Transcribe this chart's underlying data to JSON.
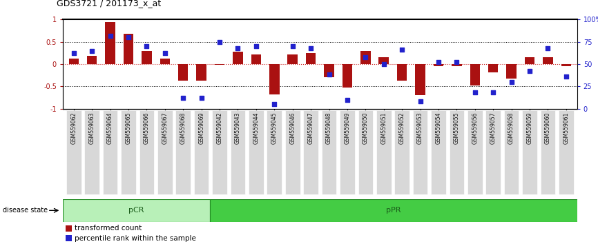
{
  "title": "GDS3721 / 201173_x_at",
  "samples": [
    "GSM559062",
    "GSM559063",
    "GSM559064",
    "GSM559065",
    "GSM559066",
    "GSM559067",
    "GSM559068",
    "GSM559069",
    "GSM559042",
    "GSM559043",
    "GSM559044",
    "GSM559045",
    "GSM559046",
    "GSM559047",
    "GSM559048",
    "GSM559049",
    "GSM559050",
    "GSM559051",
    "GSM559052",
    "GSM559053",
    "GSM559054",
    "GSM559055",
    "GSM559056",
    "GSM559057",
    "GSM559058",
    "GSM559059",
    "GSM559060",
    "GSM559061"
  ],
  "transformed_count": [
    0.12,
    0.18,
    0.95,
    0.68,
    0.3,
    0.12,
    -0.38,
    -0.38,
    -0.02,
    0.28,
    0.22,
    -0.68,
    0.22,
    0.25,
    -0.3,
    -0.53,
    0.3,
    0.15,
    -0.38,
    -0.7,
    -0.05,
    -0.05,
    -0.48,
    -0.18,
    -0.32,
    0.15,
    0.15,
    -0.05
  ],
  "percentile_rank": [
    62,
    65,
    82,
    80,
    70,
    62,
    12,
    12,
    75,
    68,
    70,
    5,
    70,
    68,
    38,
    10,
    58,
    50,
    66,
    8,
    52,
    52,
    18,
    18,
    30,
    42,
    68,
    36
  ],
  "pCR_count": 8,
  "pPR_count": 20,
  "bar_color": "#aa1111",
  "dot_color": "#2222cc",
  "pCR_light": "#b8f0b8",
  "pCR_dark": "#44cc44",
  "pPR_color": "#44cc44",
  "pPR_border": "#228B22",
  "bg_color": "#ffffff",
  "tick_label_bg": "#d8d8d8",
  "tick_label_color": "#111111",
  "ylim": [
    -1.0,
    1.0
  ],
  "yticks_left": [
    -1,
    -0.5,
    0,
    0.5,
    1
  ],
  "ytick_left_labels": [
    "-1",
    "-0.5",
    "0",
    "0.5",
    "1"
  ],
  "y_right_ticks": [
    0,
    25,
    50,
    75,
    100
  ],
  "y_right_labels": [
    "0",
    "25",
    "50",
    "75",
    "100%"
  ],
  "dotted_lines": [
    0.5,
    -0.5
  ],
  "zero_line_color": "#cc2222",
  "zero_line_style": "dotted"
}
